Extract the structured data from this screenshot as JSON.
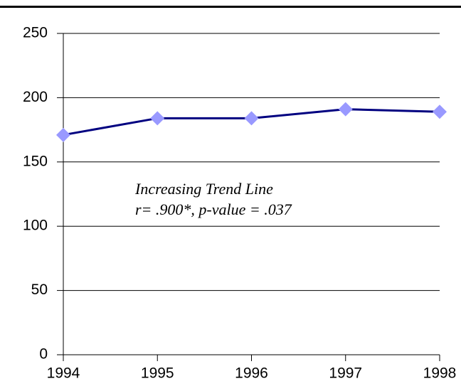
{
  "chart_data": {
    "type": "line",
    "x": [
      1994,
      1995,
      1996,
      1997,
      1998
    ],
    "values": [
      171,
      184,
      184,
      191,
      189
    ],
    "color": "#000080",
    "marker_color": "#9999ff",
    "xlim": [
      1994,
      1998
    ],
    "xticks": [
      1994,
      1995,
      1996,
      1997,
      1998
    ],
    "ylim": [
      0,
      250
    ],
    "yticks": [
      0,
      50,
      100,
      150,
      200,
      250
    ],
    "grid": true,
    "annotations": [
      "Increasing Trend Line",
      "r= .900*, p-value = .037"
    ]
  }
}
